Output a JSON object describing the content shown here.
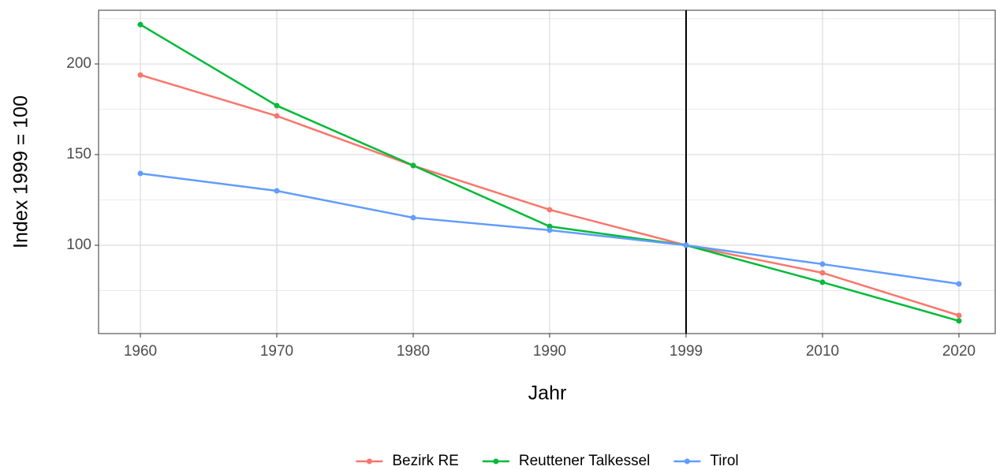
{
  "chart_data": {
    "type": "line",
    "x_label": "Jahr",
    "y_label": "Index 1999 = 100",
    "categories": [
      "1960",
      "1970",
      "1980",
      "1990",
      "1999",
      "2010",
      "2020"
    ],
    "series": [
      {
        "name": "Bezirk RE",
        "color": "#F8766D",
        "values": [
          193.9,
          171.3,
          143.9,
          119.6,
          100,
          84.8,
          61.3
        ]
      },
      {
        "name": "Reuttener Talkessel",
        "color": "#00BA38",
        "values": [
          221.7,
          177,
          144,
          110.4,
          100,
          79.6,
          58.3
        ]
      },
      {
        "name": "Tirol",
        "color": "#619CFF",
        "values": [
          139.6,
          130,
          115.2,
          108.3,
          100,
          89.6,
          78.7
        ]
      }
    ],
    "ylim": [
      51.3,
      229.6
    ],
    "yticks": [
      100,
      150,
      200
    ],
    "minor_yticks": [
      75,
      125,
      175,
      225
    ],
    "grid": true,
    "vline": "1999",
    "legend": "bottom"
  }
}
